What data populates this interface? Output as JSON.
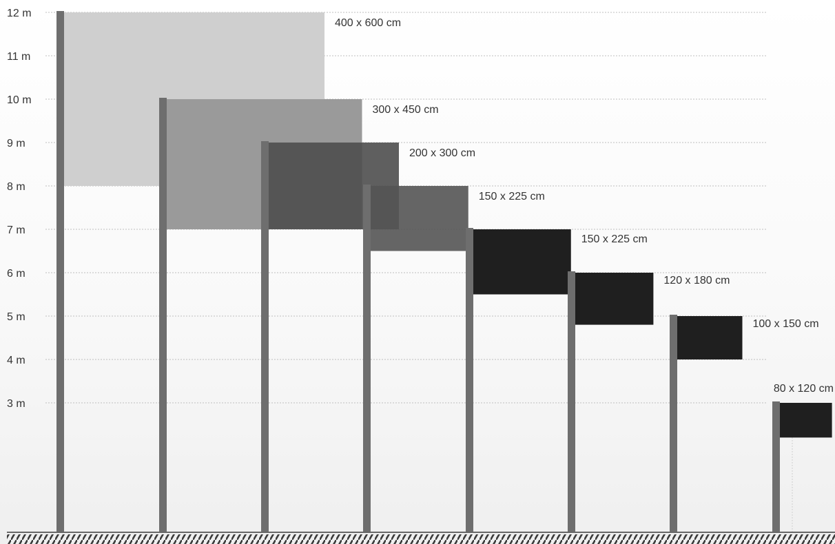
{
  "diagram": {
    "height_unit": "m",
    "y_ticks": [
      "3 m",
      "4 m",
      "5 m",
      "6 m",
      "7 m",
      "8 m",
      "9 m",
      "10 m",
      "11 m",
      "12 m"
    ],
    "flagpoles": [
      {
        "pole_height_m": 12,
        "flag_width_cm": 600,
        "flag_height_cm": 400,
        "label": "400 x 600 cm",
        "flag_color": "#cfcfcf"
      },
      {
        "pole_height_m": 10,
        "flag_width_cm": 450,
        "flag_height_cm": 300,
        "label": "300 x 450 cm",
        "flag_color": "#9a9a9a"
      },
      {
        "pole_height_m": 9,
        "flag_width_cm": 300,
        "flag_height_cm": 200,
        "label": "200 x 300 cm",
        "flag_color": "#4e4e4e"
      },
      {
        "pole_height_m": 8,
        "flag_width_cm": 225,
        "flag_height_cm": 150,
        "label": "150 x 225 cm",
        "flag_color": "#545454"
      },
      {
        "pole_height_m": 7,
        "flag_width_cm": 225,
        "flag_height_cm": 150,
        "label": "150 x 225 cm",
        "flag_color": "#1f1f1f"
      },
      {
        "pole_height_m": 6,
        "flag_width_cm": 180,
        "flag_height_cm": 120,
        "label": "120 x 180 cm",
        "flag_color": "#1f1f1f"
      },
      {
        "pole_height_m": 5,
        "flag_width_cm": 150,
        "flag_height_cm": 100,
        "label": "100 x 150 cm",
        "flag_color": "#1f1f1f"
      },
      {
        "pole_height_m": 3,
        "flag_width_cm": 120,
        "flag_height_cm": 80,
        "label": "80 x 120 cm",
        "flag_color": "#1f1f1f"
      }
    ],
    "colors": {
      "pole": "#6e6e6e",
      "gridline": "#bdbdbd",
      "ground": "#3a3a3a",
      "text": "#333333"
    }
  }
}
